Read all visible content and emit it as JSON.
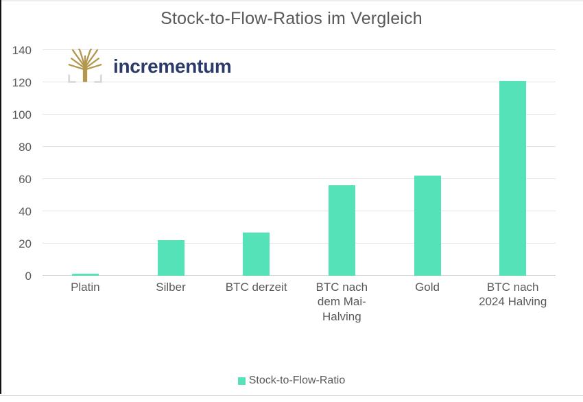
{
  "title": "Stock-to-Flow-Ratios im Vergleich",
  "logo": {
    "text": "incrementum",
    "icon": "tree-icon",
    "icon_color": "#b2974d",
    "bracket_color": "#d8d8d8",
    "text_color": "#2b3a6b"
  },
  "chart_data": {
    "type": "bar",
    "title": "Stock-to-Flow-Ratios im Vergleich",
    "categories": [
      "Platin",
      "Silber",
      "BTC derzeit",
      "BTC nach\ndem Mai-\nHalving",
      "Gold",
      "BTC nach\n2024 Halving"
    ],
    "values": [
      1.3,
      22,
      27,
      56,
      62,
      121
    ],
    "xlabel": "",
    "ylabel": "",
    "ylim": [
      0,
      140
    ],
    "ytick_step": 20,
    "ytick_labels": [
      "0",
      "20",
      "40",
      "60",
      "80",
      "100",
      "120",
      "140"
    ],
    "grid": true,
    "legend": "Stock-to-Flow-Ratio",
    "legend_position": "bottom",
    "bar_color": "#55e2b8",
    "grid_color": "#e2e2e2",
    "axis_label_color": "#595959",
    "title_color": "#58595b"
  }
}
